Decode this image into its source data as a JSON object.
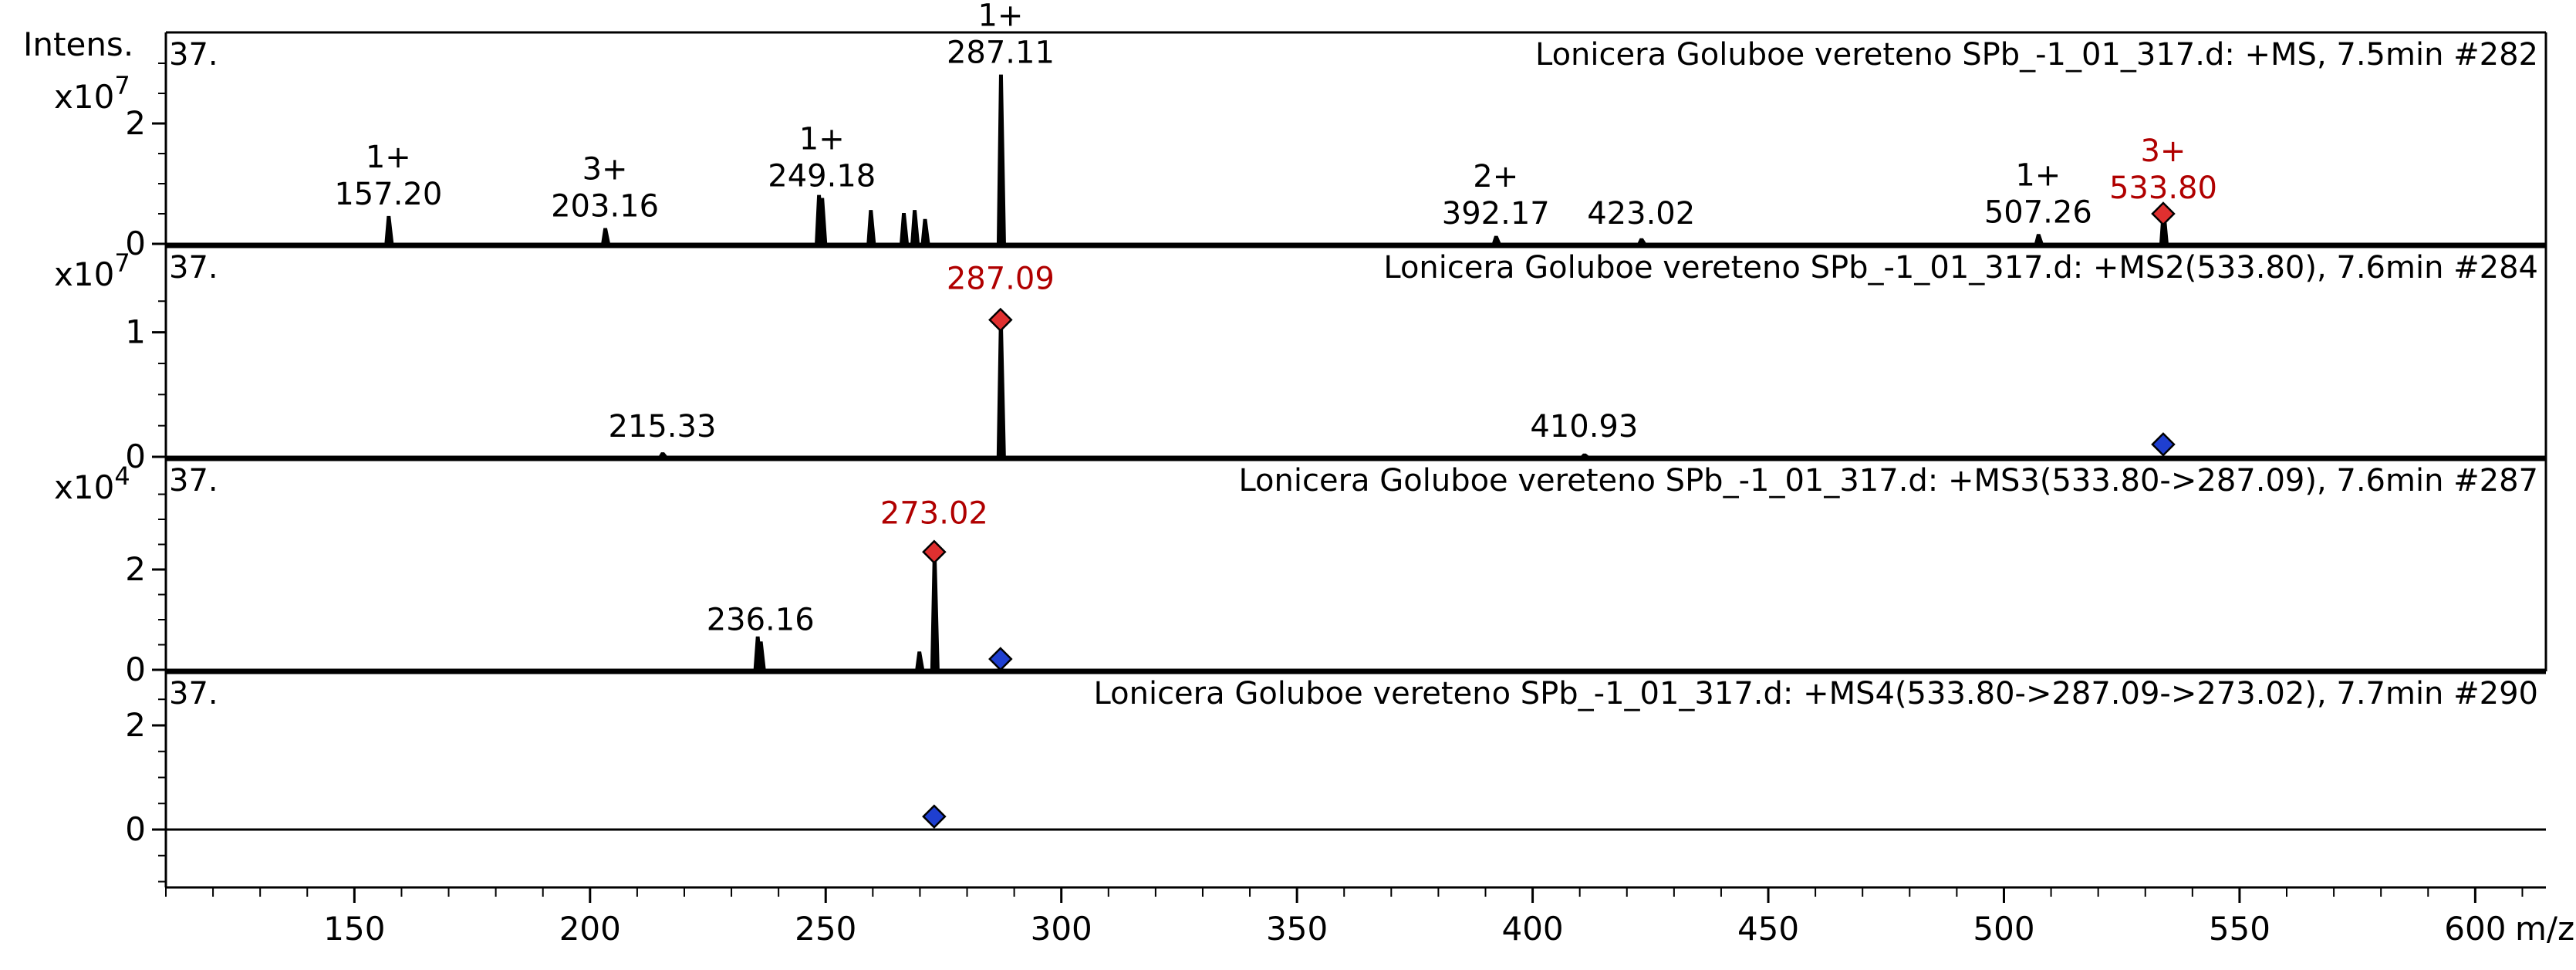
{
  "chart_data": {
    "type": "line",
    "y_axis_title": "Intens.",
    "x_axis_title": "m/z",
    "x_ticks": [
      150,
      200,
      250,
      300,
      350,
      400,
      450,
      500,
      550,
      600
    ],
    "xlim": [
      110,
      615
    ],
    "grid": false,
    "highlight_color": "#e03030",
    "precursor_color": "#1f3fd0",
    "panels": [
      {
        "name": "ms1",
        "panel_number": "37.",
        "header": "Lonicera Goluboe vereteno SPb_-1_01_317.d: +MS, 7.5min #282",
        "scale_base": "x10",
        "scale_exp": "7",
        "ylim": [
          0,
          3.0
        ],
        "y_ticks": [
          "0",
          "2"
        ],
        "y_tick_values": [
          0,
          2
        ],
        "peaks": [
          {
            "mz": 157.2,
            "y": 0.45
          },
          {
            "mz": 203.16,
            "y": 0.25
          },
          {
            "mz": 248.5,
            "y": 0.8
          },
          {
            "mz": 249.18,
            "y": 0.75
          },
          {
            "mz": 259.5,
            "y": 0.55
          },
          {
            "mz": 266.5,
            "y": 0.5
          },
          {
            "mz": 268.8,
            "y": 0.55
          },
          {
            "mz": 271.0,
            "y": 0.4
          },
          {
            "mz": 287.11,
            "y": 2.8
          },
          {
            "mz": 392.17,
            "y": 0.12
          },
          {
            "mz": 423.02,
            "y": 0.08
          },
          {
            "mz": 507.26,
            "y": 0.15
          },
          {
            "mz": 533.8,
            "y": 0.55
          }
        ],
        "labels": [
          {
            "mz": 157.2,
            "text": "157.20",
            "charge": "1+",
            "red": false
          },
          {
            "mz": 203.16,
            "text": "203.16",
            "charge": "3+",
            "red": false
          },
          {
            "mz": 249.18,
            "text": "249.18",
            "charge": "1+",
            "red": false
          },
          {
            "mz": 287.11,
            "text": "287.11",
            "charge": "1+",
            "red": false
          },
          {
            "mz": 392.17,
            "text": "392.17",
            "charge": "2+",
            "red": false
          },
          {
            "mz": 423.02,
            "text": "423.02",
            "charge": "",
            "red": false
          },
          {
            "mz": 507.26,
            "text": "507.26",
            "charge": "1+",
            "red": false
          },
          {
            "mz": 533.8,
            "text": "533.80",
            "charge": "3+",
            "red": true
          }
        ],
        "markers": [
          {
            "mz": 533.8,
            "y": 0.5,
            "kind": "selected"
          }
        ]
      },
      {
        "name": "ms2",
        "panel_number": "37.",
        "header": "Lonicera Goluboe vereteno SPb_-1_01_317.d: +MS2(533.80), 7.6min #284",
        "scale_base": "x10",
        "scale_exp": "7",
        "ylim": [
          0,
          1.45
        ],
        "y_ticks": [
          "0",
          "1"
        ],
        "y_tick_values": [
          0,
          1
        ],
        "peaks": [
          {
            "mz": 215.33,
            "y": 0.03
          },
          {
            "mz": 287.09,
            "y": 1.1
          },
          {
            "mz": 410.93,
            "y": 0.02
          }
        ],
        "labels": [
          {
            "mz": 215.33,
            "text": "215.33",
            "charge": "",
            "red": false
          },
          {
            "mz": 287.09,
            "text": "287.09",
            "charge": "",
            "red": true
          },
          {
            "mz": 410.93,
            "text": "410.93",
            "charge": "",
            "red": false
          }
        ],
        "markers": [
          {
            "mz": 287.09,
            "y": 1.1,
            "kind": "selected"
          },
          {
            "mz": 533.8,
            "y": 0.1,
            "kind": "precursor"
          }
        ]
      },
      {
        "name": "ms3",
        "panel_number": "37.",
        "header": "Lonicera Goluboe vereteno SPb_-1_01_317.d: +MS3(533.80->287.09), 7.6min #287",
        "scale_base": "x10",
        "scale_exp": "4",
        "ylim": [
          0,
          3.6
        ],
        "y_ticks": [
          "0",
          "2"
        ],
        "y_tick_values": [
          0,
          2
        ],
        "peaks": [
          {
            "mz": 235.5,
            "y": 0.65
          },
          {
            "mz": 236.16,
            "y": 0.55
          },
          {
            "mz": 269.8,
            "y": 0.35
          },
          {
            "mz": 273.02,
            "y": 2.3
          }
        ],
        "labels": [
          {
            "mz": 236.16,
            "text": "236.16",
            "charge": "",
            "red": false
          },
          {
            "mz": 273.02,
            "text": "273.02",
            "charge": "",
            "red": true
          }
        ],
        "markers": [
          {
            "mz": 273.02,
            "y": 2.35,
            "kind": "selected"
          },
          {
            "mz": 287.09,
            "y": 0.2,
            "kind": "precursor"
          }
        ]
      },
      {
        "name": "ms4",
        "panel_number": "37.",
        "header": "Lonicera Goluboe vereteno SPb_-1_01_317.d: +MS4(533.80->287.09->273.02), 7.7min #290",
        "scale_base": "",
        "scale_exp": "",
        "ylim": [
          -1.0,
          2.8
        ],
        "y_ticks": [
          "0",
          "2"
        ],
        "y_tick_values": [
          0,
          2
        ],
        "peaks": [],
        "labels": [],
        "markers": [
          {
            "mz": 273.02,
            "y": 0.25,
            "kind": "precursor"
          }
        ]
      }
    ]
  }
}
